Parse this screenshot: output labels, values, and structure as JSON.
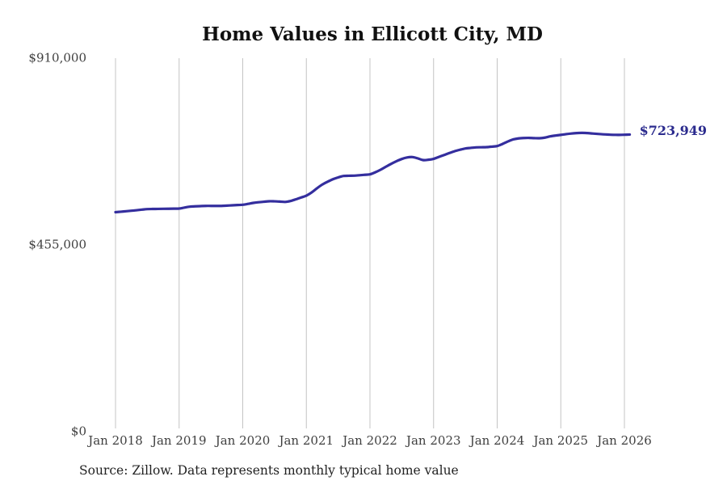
{
  "page": {
    "title": "Home Values in Ellicott City, MD",
    "source_note": "Source: Zillow. Data represents monthly typical home value"
  },
  "chart_data": {
    "type": "line",
    "title": "Home Values in Ellicott City, MD",
    "series_name": "Monthly typical home value",
    "ylim": [
      0,
      910000
    ],
    "grid": "vertical-only",
    "legend": "none",
    "end_label": "$723,949",
    "end_value": 723949,
    "line_color": "#342E9E",
    "end_label_color": "#2B2B8E",
    "grid_color": "#C4C4C4",
    "tick_color": "#3F3F3F",
    "title_color": "#111111",
    "y_ticks": [
      {
        "value": 0,
        "label": "$0"
      },
      {
        "value": 455000,
        "label": "$455,000"
      },
      {
        "value": 910000,
        "label": "$910,000"
      }
    ],
    "x_ticks": [
      "Jan 2018",
      "Jan 2019",
      "Jan 2020",
      "Jan 2021",
      "Jan 2022",
      "Jan 2023",
      "Jan 2024",
      "Jan 2025",
      "Jan 2026"
    ],
    "x_months": [
      "2018-01",
      "2018-02",
      "2018-03",
      "2018-04",
      "2018-05",
      "2018-06",
      "2018-07",
      "2018-08",
      "2018-09",
      "2018-10",
      "2018-11",
      "2018-12",
      "2019-01",
      "2019-02",
      "2019-03",
      "2019-04",
      "2019-05",
      "2019-06",
      "2019-07",
      "2019-08",
      "2019-09",
      "2019-10",
      "2019-11",
      "2019-12",
      "2020-01",
      "2020-02",
      "2020-03",
      "2020-04",
      "2020-05",
      "2020-06",
      "2020-07",
      "2020-08",
      "2020-09",
      "2020-10",
      "2020-11",
      "2020-12",
      "2021-01",
      "2021-02",
      "2021-03",
      "2021-04",
      "2021-05",
      "2021-06",
      "2021-07",
      "2021-08",
      "2021-09",
      "2021-10",
      "2021-11",
      "2021-12",
      "2022-01",
      "2022-02",
      "2022-03",
      "2022-04",
      "2022-05",
      "2022-06",
      "2022-07",
      "2022-08",
      "2022-09",
      "2022-10",
      "2022-11",
      "2022-12",
      "2023-01",
      "2023-02",
      "2023-03",
      "2023-04",
      "2023-05",
      "2023-06",
      "2023-07",
      "2023-08",
      "2023-09",
      "2023-10",
      "2023-11",
      "2023-12",
      "2024-01",
      "2024-02",
      "2024-03",
      "2024-04",
      "2024-05",
      "2024-06",
      "2024-07",
      "2024-08",
      "2024-09",
      "2024-10",
      "2024-11",
      "2024-12",
      "2025-01",
      "2025-02",
      "2025-03",
      "2025-04",
      "2025-05",
      "2025-06",
      "2025-07",
      "2025-08",
      "2025-09",
      "2025-10",
      "2025-11",
      "2025-12",
      "2026-01",
      "2026-02"
    ],
    "values": [
      534800,
      535900,
      537100,
      538300,
      539600,
      541000,
      542300,
      542600,
      542800,
      543000,
      543200,
      543400,
      543600,
      546000,
      548200,
      549000,
      549600,
      550100,
      550100,
      550100,
      550100,
      550800,
      551500,
      552200,
      552900,
      555000,
      557400,
      559000,
      560300,
      561400,
      561200,
      560600,
      559800,
      562000,
      566000,
      570500,
      575100,
      583000,
      593000,
      602100,
      609000,
      615100,
      619500,
      623000,
      623500,
      623800,
      624800,
      625900,
      627000,
      632000,
      638200,
      645500,
      652600,
      659000,
      664400,
      668000,
      669100,
      666000,
      661800,
      662500,
      664700,
      669500,
      674200,
      679000,
      683500,
      687000,
      690000,
      691500,
      692700,
      693000,
      693300,
      694500,
      696000,
      701000,
      707000,
      712000,
      714500,
      715500,
      715800,
      715200,
      715000,
      716500,
      719500,
      721500,
      723100,
      725000,
      726500,
      727500,
      728000,
      727500,
      726500,
      725500,
      724500,
      723800,
      723300,
      723200,
      723500,
      723949
    ]
  }
}
